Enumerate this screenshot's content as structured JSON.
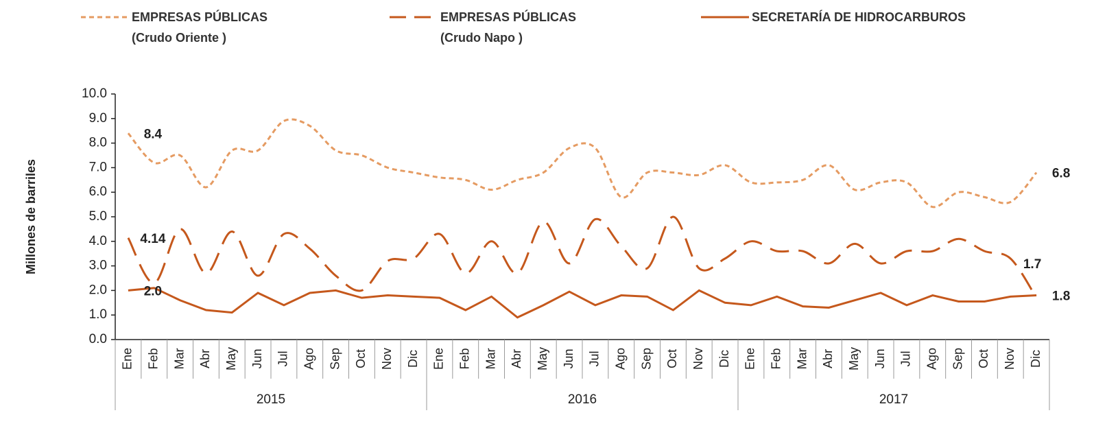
{
  "chart_data": {
    "type": "line",
    "y_axis_label": "Millones de barriles",
    "categories": [
      "Ene",
      "Feb",
      "Mar",
      "Abr",
      "May",
      "Jun",
      "Jul",
      "Ago",
      "Sep",
      "Oct",
      "Nov",
      "Dic",
      "Ene",
      "Feb",
      "Mar",
      "Abr",
      "May",
      "Jun",
      "Jul",
      "Ago",
      "Sep",
      "Oct",
      "Nov",
      "Dic",
      "Ene",
      "Feb",
      "Mar",
      "Abr",
      "May",
      "Jun",
      "Jul",
      "Ago",
      "Sep",
      "Oct",
      "Nov",
      "Dic"
    ],
    "years": [
      "2015",
      "2016",
      "2017"
    ],
    "ylim": [
      0,
      10
    ],
    "yticks": [
      {
        "value": 0,
        "label": "0.0"
      },
      {
        "value": 1,
        "label": "1.0"
      },
      {
        "value": 2,
        "label": "2.0"
      },
      {
        "value": 3,
        "label": "3.0"
      },
      {
        "value": 4,
        "label": "4.0"
      },
      {
        "value": 5,
        "label": "5.0"
      },
      {
        "value": 6,
        "label": "6.0"
      },
      {
        "value": 7,
        "label": "7.0"
      },
      {
        "value": 8,
        "label": "8.0"
      },
      {
        "value": 9,
        "label": "9.0"
      },
      {
        "value": 10,
        "label": "10.0"
      }
    ],
    "legend_position": "top",
    "series": [
      {
        "name": "EMPRESAS PÚBLICAS\n(Crudo Oriente )",
        "color": "#e59b62",
        "dash": "dotted",
        "smooth": true,
        "values": [
          8.4,
          7.2,
          7.5,
          6.2,
          7.7,
          7.7,
          8.9,
          8.7,
          7.7,
          7.5,
          7.0,
          6.8,
          6.6,
          6.5,
          6.1,
          6.5,
          6.8,
          7.8,
          7.8,
          5.8,
          6.8,
          6.8,
          6.7,
          7.1,
          6.4,
          6.4,
          6.5,
          7.1,
          6.1,
          6.4,
          6.4,
          5.4,
          6.0,
          5.8,
          5.6,
          6.8
        ],
        "value_labels": [
          "8.4",
          null,
          null,
          null,
          null,
          null,
          null,
          null,
          null,
          null,
          null,
          null,
          null,
          null,
          null,
          null,
          null,
          null,
          null,
          null,
          null,
          null,
          null,
          null,
          null,
          null,
          null,
          null,
          null,
          null,
          null,
          null,
          null,
          null,
          null,
          "6.8"
        ]
      },
      {
        "name": "EMPRESAS PÚBLICAS\n(Crudo Napo )",
        "color": "#c5581c",
        "dash": "dashed",
        "smooth": true,
        "values": [
          4.14,
          2.3,
          4.5,
          2.7,
          4.4,
          2.6,
          4.3,
          3.7,
          2.6,
          2.0,
          3.2,
          3.3,
          4.3,
          2.7,
          4.0,
          2.7,
          4.8,
          3.1,
          4.9,
          3.8,
          2.9,
          5.0,
          2.9,
          3.3,
          4.0,
          3.6,
          3.6,
          3.1,
          3.9,
          3.1,
          3.6,
          3.6,
          4.1,
          3.6,
          3.3,
          1.7
        ],
        "value_labels": [
          "4.14",
          null,
          null,
          null,
          null,
          null,
          null,
          null,
          null,
          null,
          null,
          null,
          null,
          null,
          null,
          null,
          null,
          null,
          null,
          null,
          null,
          null,
          null,
          null,
          null,
          null,
          null,
          null,
          null,
          null,
          null,
          null,
          null,
          null,
          null,
          "1.7"
        ]
      },
      {
        "name": "SECRETARÍA DE HIDROCARBUROS",
        "color": "#c5581c",
        "dash": "solid",
        "smooth": false,
        "values": [
          2.0,
          2.1,
          1.6,
          1.2,
          1.1,
          1.9,
          1.4,
          1.9,
          2.0,
          1.7,
          1.8,
          1.75,
          1.7,
          1.2,
          1.75,
          0.9,
          1.4,
          1.95,
          1.4,
          1.8,
          1.75,
          1.2,
          2.0,
          1.5,
          1.4,
          1.75,
          1.35,
          1.3,
          1.6,
          1.9,
          1.4,
          1.8,
          1.55,
          1.55,
          1.75,
          1.8
        ],
        "value_labels": [
          "2.0",
          null,
          null,
          null,
          null,
          null,
          null,
          null,
          null,
          null,
          null,
          null,
          null,
          null,
          null,
          null,
          null,
          null,
          null,
          null,
          null,
          null,
          null,
          null,
          null,
          null,
          null,
          null,
          null,
          null,
          null,
          null,
          null,
          null,
          null,
          "1.8"
        ]
      }
    ]
  }
}
